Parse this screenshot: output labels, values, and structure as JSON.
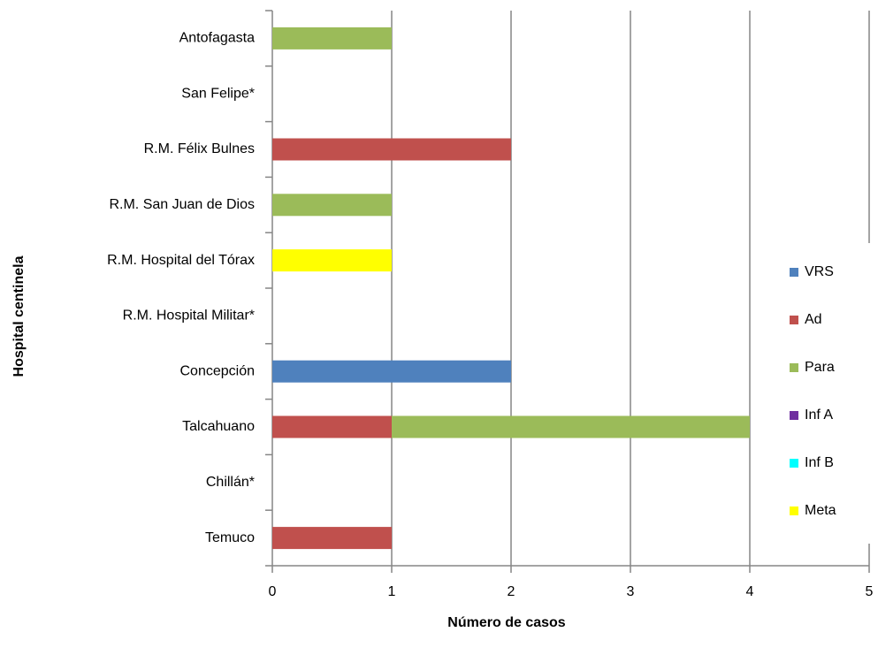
{
  "chart_data": {
    "type": "stacked-barh",
    "xlabel": "Número de casos",
    "ylabel": "Hospital centinela",
    "categories": [
      "Antofagasta",
      "San Felipe*",
      "R.M. Félix Bulnes",
      "R.M. San Juan de Dios",
      "R.M. Hospital del Tórax",
      "R.M. Hospital Militar*",
      "Concepción",
      "Talcahuano",
      "Chillán*",
      "Temuco"
    ],
    "series": [
      {
        "name": "VRS",
        "color": "#4f81bd",
        "values": [
          0,
          0,
          0,
          0,
          0,
          0,
          2,
          0,
          0,
          0
        ]
      },
      {
        "name": "Ad",
        "color": "#c0504d",
        "values": [
          0,
          0,
          2,
          0,
          0,
          0,
          0,
          1,
          0,
          1
        ]
      },
      {
        "name": "Para",
        "color": "#9bbb59",
        "values": [
          1,
          0,
          0,
          1,
          0,
          0,
          0,
          3,
          0,
          0
        ]
      },
      {
        "name": "Inf A",
        "color": "#7030a0",
        "values": [
          0,
          0,
          0,
          0,
          0,
          0,
          0,
          0,
          0,
          0
        ]
      },
      {
        "name": "Inf B",
        "color": "#00ffff",
        "values": [
          0,
          0,
          0,
          0,
          0,
          0,
          0,
          0,
          0,
          0
        ]
      },
      {
        "name": "Meta",
        "color": "#ffff00",
        "values": [
          0,
          0,
          0,
          0,
          1,
          0,
          0,
          0,
          0,
          0
        ]
      }
    ],
    "xlim": [
      0,
      5
    ],
    "xticks": [
      0,
      1,
      2,
      3,
      4,
      5
    ],
    "grid": true,
    "legend": "right"
  }
}
